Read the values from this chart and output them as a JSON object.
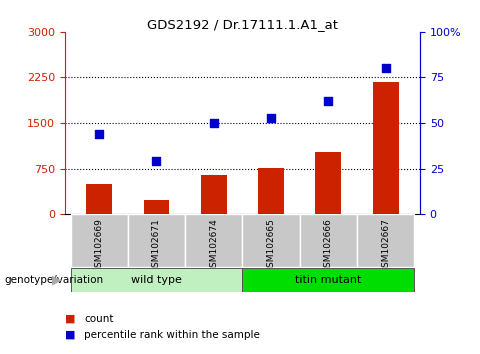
{
  "title": "GDS2192 / Dr.17111.1.A1_at",
  "samples": [
    "GSM102669",
    "GSM102671",
    "GSM102674",
    "GSM102665",
    "GSM102666",
    "GSM102667"
  ],
  "counts": [
    490,
    240,
    640,
    760,
    1020,
    2180
  ],
  "percentiles": [
    44,
    29,
    50,
    53,
    62,
    80
  ],
  "bar_color": "#cc2200",
  "dot_color": "#0000cc",
  "left_ylim": [
    0,
    3000
  ],
  "right_ylim": [
    0,
    100
  ],
  "left_yticks": [
    0,
    750,
    1500,
    2250,
    3000
  ],
  "right_yticks": [
    0,
    25,
    50,
    75,
    100
  ],
  "left_yticklabels": [
    "0",
    "750",
    "1500",
    "2250",
    "3000"
  ],
  "right_yticklabels": [
    "0",
    "25",
    "50",
    "75",
    "100%"
  ],
  "left_color": "#cc2200",
  "right_color": "#0000cc",
  "grid_values": [
    750,
    1500,
    2250
  ],
  "genotype_label": "genotype/variation",
  "wt_label": "wild type",
  "tm_label": "titin mutant",
  "legend_count": "count",
  "legend_percentile": "percentile rank within the sample",
  "bg_color_xaxis": "#c8c8c8",
  "bg_color_wt": "#c0f0c0",
  "bg_color_tm": "#00dd00",
  "wt_indices": [
    0,
    1,
    2
  ],
  "tm_indices": [
    3,
    4,
    5
  ]
}
